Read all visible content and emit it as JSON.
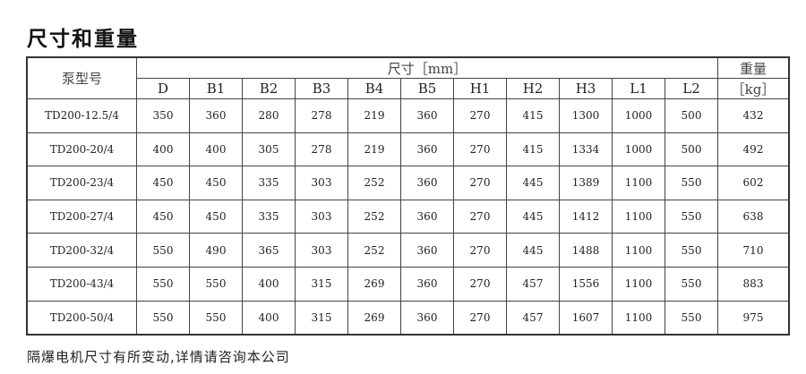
{
  "title": "尺寸和重量",
  "table": {
    "model_header": "泵型号",
    "dims_header": "尺寸［mm］",
    "weight_header_line1": "重量",
    "weight_header_line2": "［kg］",
    "columns": [
      "D",
      "B1",
      "B2",
      "B3",
      "B4",
      "B5",
      "H1",
      "H2",
      "H3",
      "L1",
      "L2"
    ],
    "rows": [
      {
        "model": "TD200-12.5/4",
        "values": [
          "350",
          "360",
          "280",
          "278",
          "219",
          "360",
          "270",
          "415",
          "1300",
          "1000",
          "500"
        ],
        "weight": "432"
      },
      {
        "model": "TD200-20/4",
        "values": [
          "400",
          "400",
          "305",
          "278",
          "219",
          "360",
          "270",
          "415",
          "1334",
          "1000",
          "500"
        ],
        "weight": "492"
      },
      {
        "model": "TD200-23/4",
        "values": [
          "450",
          "450",
          "335",
          "303",
          "252",
          "360",
          "270",
          "445",
          "1389",
          "1100",
          "550"
        ],
        "weight": "602"
      },
      {
        "model": "TD200-27/4",
        "values": [
          "450",
          "450",
          "335",
          "303",
          "252",
          "360",
          "270",
          "445",
          "1412",
          "1100",
          "550"
        ],
        "weight": "638"
      },
      {
        "model": "TD200-32/4",
        "values": [
          "550",
          "490",
          "365",
          "303",
          "252",
          "360",
          "270",
          "445",
          "1488",
          "1100",
          "550"
        ],
        "weight": "710"
      },
      {
        "model": "TD200-43/4",
        "values": [
          "550",
          "550",
          "400",
          "315",
          "269",
          "360",
          "270",
          "457",
          "1556",
          "1100",
          "550"
        ],
        "weight": "883"
      },
      {
        "model": "TD200-50/4",
        "values": [
          "550",
          "550",
          "400",
          "315",
          "269",
          "360",
          "270",
          "457",
          "1607",
          "1100",
          "550"
        ],
        "weight": "975"
      }
    ]
  },
  "footer": "隔爆电机尺寸有所变动,详情请咨询本公司"
}
